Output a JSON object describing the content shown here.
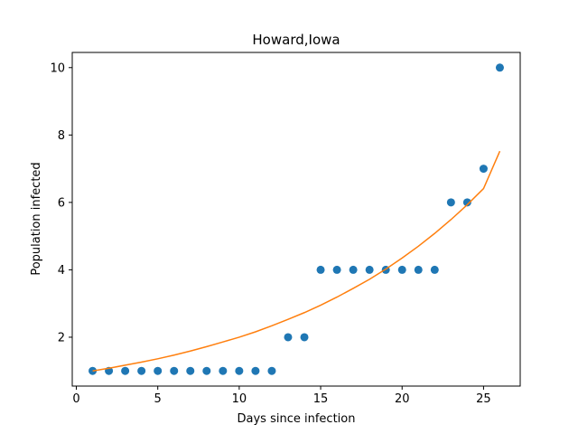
{
  "chart_data": {
    "type": "scatter",
    "title": "Howard,Iowa",
    "xlabel": "Days since infection",
    "ylabel": "Population infected",
    "xlim": [
      -0.25,
      27.25
    ],
    "ylim": [
      0.55,
      10.45
    ],
    "xticks": [
      0,
      5,
      10,
      15,
      20,
      25
    ],
    "yticks": [
      2,
      4,
      6,
      8,
      10
    ],
    "grid": false,
    "series": [
      {
        "kind": "scatter",
        "color": "#1f77b4",
        "points": [
          [
            1,
            1
          ],
          [
            2,
            1
          ],
          [
            3,
            1
          ],
          [
            4,
            1
          ],
          [
            5,
            1
          ],
          [
            6,
            1
          ],
          [
            7,
            1
          ],
          [
            8,
            1
          ],
          [
            9,
            1
          ],
          [
            10,
            1
          ],
          [
            11,
            1
          ],
          [
            12,
            1
          ],
          [
            13,
            2
          ],
          [
            14,
            2
          ],
          [
            15,
            4
          ],
          [
            16,
            4
          ],
          [
            17,
            4
          ],
          [
            18,
            4
          ],
          [
            19,
            4
          ],
          [
            20,
            4
          ],
          [
            21,
            4
          ],
          [
            22,
            4
          ],
          [
            23,
            6
          ],
          [
            24,
            6
          ],
          [
            25,
            7
          ],
          [
            26,
            10
          ]
        ]
      },
      {
        "kind": "line",
        "color": "#ff7f0e",
        "points": [
          [
            1,
            1.0
          ],
          [
            2,
            1.08
          ],
          [
            3,
            1.17
          ],
          [
            4,
            1.26
          ],
          [
            5,
            1.36
          ],
          [
            6,
            1.47
          ],
          [
            7,
            1.59
          ],
          [
            8,
            1.72
          ],
          [
            9,
            1.86
          ],
          [
            10,
            2.0
          ],
          [
            11,
            2.16
          ],
          [
            12,
            2.34
          ],
          [
            13,
            2.53
          ],
          [
            14,
            2.73
          ],
          [
            15,
            2.95
          ],
          [
            16,
            3.19
          ],
          [
            17,
            3.45
          ],
          [
            18,
            3.72
          ],
          [
            19,
            4.02
          ],
          [
            20,
            4.35
          ],
          [
            21,
            4.7
          ],
          [
            22,
            5.08
          ],
          [
            23,
            5.49
          ],
          [
            24,
            5.93
          ],
          [
            25,
            6.41
          ],
          [
            26,
            7.52
          ]
        ]
      }
    ]
  }
}
